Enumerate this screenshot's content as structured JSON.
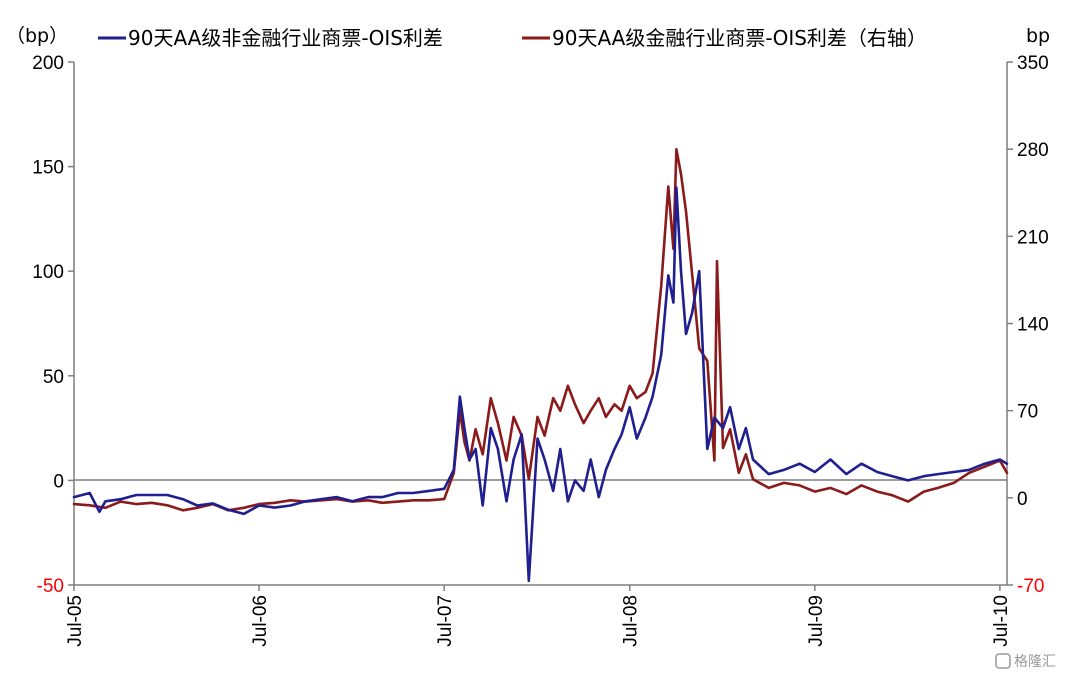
{
  "chart_data": {
    "type": "line",
    "title": "",
    "left_unit": "（bp）",
    "right_unit": "bp",
    "legend_position": "top",
    "grid": false,
    "colors": {
      "series_left": "#1f1f8f",
      "series_right": "#8b1a1a",
      "negative_tick": "#ff0000",
      "axis": "#7f7f7f"
    },
    "y_left": {
      "min": -50,
      "max": 200,
      "ticks": [
        -50,
        0,
        50,
        100,
        150,
        200
      ],
      "tick_labels": [
        "-50",
        "0",
        "50",
        "100",
        "150",
        "200"
      ]
    },
    "y_right": {
      "min": -70,
      "max": 350,
      "ticks": [
        -70,
        0,
        70,
        140,
        210,
        280,
        350
      ],
      "tick_labels": [
        "-70",
        "0",
        "70",
        "140",
        "210",
        "280",
        "350"
      ]
    },
    "x_axis": {
      "start": "2005-07-01",
      "end": "2010-07-15",
      "ticks": [
        "2005-07-01",
        "2006-07-01",
        "2007-07-01",
        "2008-07-01",
        "2009-07-01",
        "2010-07-01"
      ],
      "tick_labels": [
        "Jul-05",
        "Jul-06",
        "Jul-07",
        "Jul-08",
        "Jul-09",
        "Jul-10"
      ]
    },
    "series": [
      {
        "name": "90天AA级非金融行业商票-OIS利差",
        "axis": "left",
        "x": [
          "2005-07-01",
          "2005-08-01",
          "2005-08-20",
          "2005-09-01",
          "2005-10-01",
          "2005-11-01",
          "2005-12-01",
          "2006-01-01",
          "2006-02-01",
          "2006-03-01",
          "2006-04-01",
          "2006-05-01",
          "2006-06-01",
          "2006-07-01",
          "2006-08-01",
          "2006-09-01",
          "2006-10-01",
          "2006-11-01",
          "2006-12-01",
          "2007-01-01",
          "2007-02-01",
          "2007-03-01",
          "2007-04-01",
          "2007-05-01",
          "2007-06-01",
          "2007-07-01",
          "2007-07-20",
          "2007-08-01",
          "2007-08-10",
          "2007-08-20",
          "2007-09-01",
          "2007-09-15",
          "2007-10-01",
          "2007-10-15",
          "2007-11-01",
          "2007-11-15",
          "2007-12-01",
          "2007-12-15",
          "2008-01-01",
          "2008-01-15",
          "2008-02-01",
          "2008-02-15",
          "2008-03-01",
          "2008-03-15",
          "2008-04-01",
          "2008-04-15",
          "2008-05-01",
          "2008-05-15",
          "2008-06-01",
          "2008-06-15",
          "2008-07-01",
          "2008-07-15",
          "2008-08-01",
          "2008-08-15",
          "2008-09-01",
          "2008-09-15",
          "2008-09-25",
          "2008-10-01",
          "2008-10-10",
          "2008-10-20",
          "2008-11-01",
          "2008-11-15",
          "2008-12-01",
          "2008-12-15",
          "2009-01-01",
          "2009-01-15",
          "2009-02-01",
          "2009-02-15",
          "2009-03-01",
          "2009-04-01",
          "2009-05-01",
          "2009-06-01",
          "2009-07-01",
          "2009-08-01",
          "2009-09-01",
          "2009-10-01",
          "2009-11-01",
          "2009-12-01",
          "2010-01-01",
          "2010-02-01",
          "2010-03-01",
          "2010-04-01",
          "2010-05-01",
          "2010-06-01",
          "2010-07-01",
          "2010-07-15"
        ],
        "values": [
          -8,
          -6,
          -15,
          -10,
          -9,
          -7,
          -7,
          -7,
          -9,
          -12,
          -11,
          -14,
          -16,
          -12,
          -13,
          -12,
          -10,
          -9,
          -8,
          -10,
          -8,
          -8,
          -6,
          -6,
          -5,
          -4,
          5,
          40,
          25,
          10,
          15,
          -12,
          25,
          15,
          -10,
          10,
          22,
          -48,
          20,
          10,
          -5,
          15,
          -10,
          0,
          -5,
          10,
          -8,
          5,
          15,
          22,
          35,
          20,
          30,
          40,
          60,
          98,
          85,
          140,
          100,
          70,
          80,
          100,
          15,
          30,
          25,
          35,
          15,
          25,
          10,
          3,
          5,
          8,
          4,
          10,
          3,
          8,
          4,
          2,
          0,
          2,
          3,
          4,
          5,
          8,
          10,
          8
        ]
      },
      {
        "name": "90天AA级金融行业商票-OIS利差（右轴）",
        "axis": "right",
        "x": [
          "2005-07-01",
          "2005-08-01",
          "2005-09-01",
          "2005-10-01",
          "2005-11-01",
          "2005-12-01",
          "2006-01-01",
          "2006-02-01",
          "2006-03-01",
          "2006-04-01",
          "2006-05-01",
          "2006-06-01",
          "2006-07-01",
          "2006-08-01",
          "2006-09-01",
          "2006-10-01",
          "2006-11-01",
          "2006-12-01",
          "2007-01-01",
          "2007-02-01",
          "2007-03-01",
          "2007-04-01",
          "2007-05-01",
          "2007-06-01",
          "2007-07-01",
          "2007-07-20",
          "2007-08-01",
          "2007-08-10",
          "2007-08-20",
          "2007-09-01",
          "2007-09-15",
          "2007-10-01",
          "2007-10-15",
          "2007-11-01",
          "2007-11-15",
          "2007-12-01",
          "2007-12-15",
          "2008-01-01",
          "2008-01-15",
          "2008-02-01",
          "2008-02-15",
          "2008-03-01",
          "2008-03-15",
          "2008-04-01",
          "2008-04-15",
          "2008-05-01",
          "2008-05-15",
          "2008-06-01",
          "2008-06-15",
          "2008-07-01",
          "2008-07-15",
          "2008-08-01",
          "2008-08-15",
          "2008-09-01",
          "2008-09-15",
          "2008-09-25",
          "2008-10-01",
          "2008-10-10",
          "2008-10-20",
          "2008-11-01",
          "2008-11-15",
          "2008-12-01",
          "2008-12-15",
          "2008-12-20",
          "2009-01-01",
          "2009-01-15",
          "2009-02-01",
          "2009-02-15",
          "2009-03-01",
          "2009-04-01",
          "2009-05-01",
          "2009-06-01",
          "2009-07-01",
          "2009-08-01",
          "2009-09-01",
          "2009-10-01",
          "2009-11-01",
          "2009-12-01",
          "2010-01-01",
          "2010-02-01",
          "2010-03-01",
          "2010-04-01",
          "2010-05-01",
          "2010-06-01",
          "2010-07-01",
          "2010-07-15"
        ],
        "values": [
          -5,
          -6,
          -8,
          -3,
          -5,
          -4,
          -6,
          -10,
          -8,
          -5,
          -10,
          -8,
          -5,
          -4,
          -2,
          -3,
          -2,
          -1,
          -3,
          -2,
          -4,
          -3,
          -2,
          -2,
          -1,
          20,
          70,
          45,
          30,
          55,
          35,
          80,
          60,
          30,
          65,
          50,
          15,
          65,
          50,
          80,
          70,
          90,
          75,
          60,
          70,
          80,
          65,
          75,
          70,
          90,
          80,
          85,
          100,
          170,
          250,
          200,
          280,
          260,
          230,
          180,
          120,
          110,
          30,
          190,
          40,
          55,
          20,
          35,
          15,
          8,
          12,
          10,
          5,
          8,
          3,
          10,
          5,
          2,
          -3,
          5,
          8,
          12,
          20,
          25,
          30,
          20
        ]
      }
    ]
  },
  "watermark": {
    "text": "格隆汇"
  }
}
